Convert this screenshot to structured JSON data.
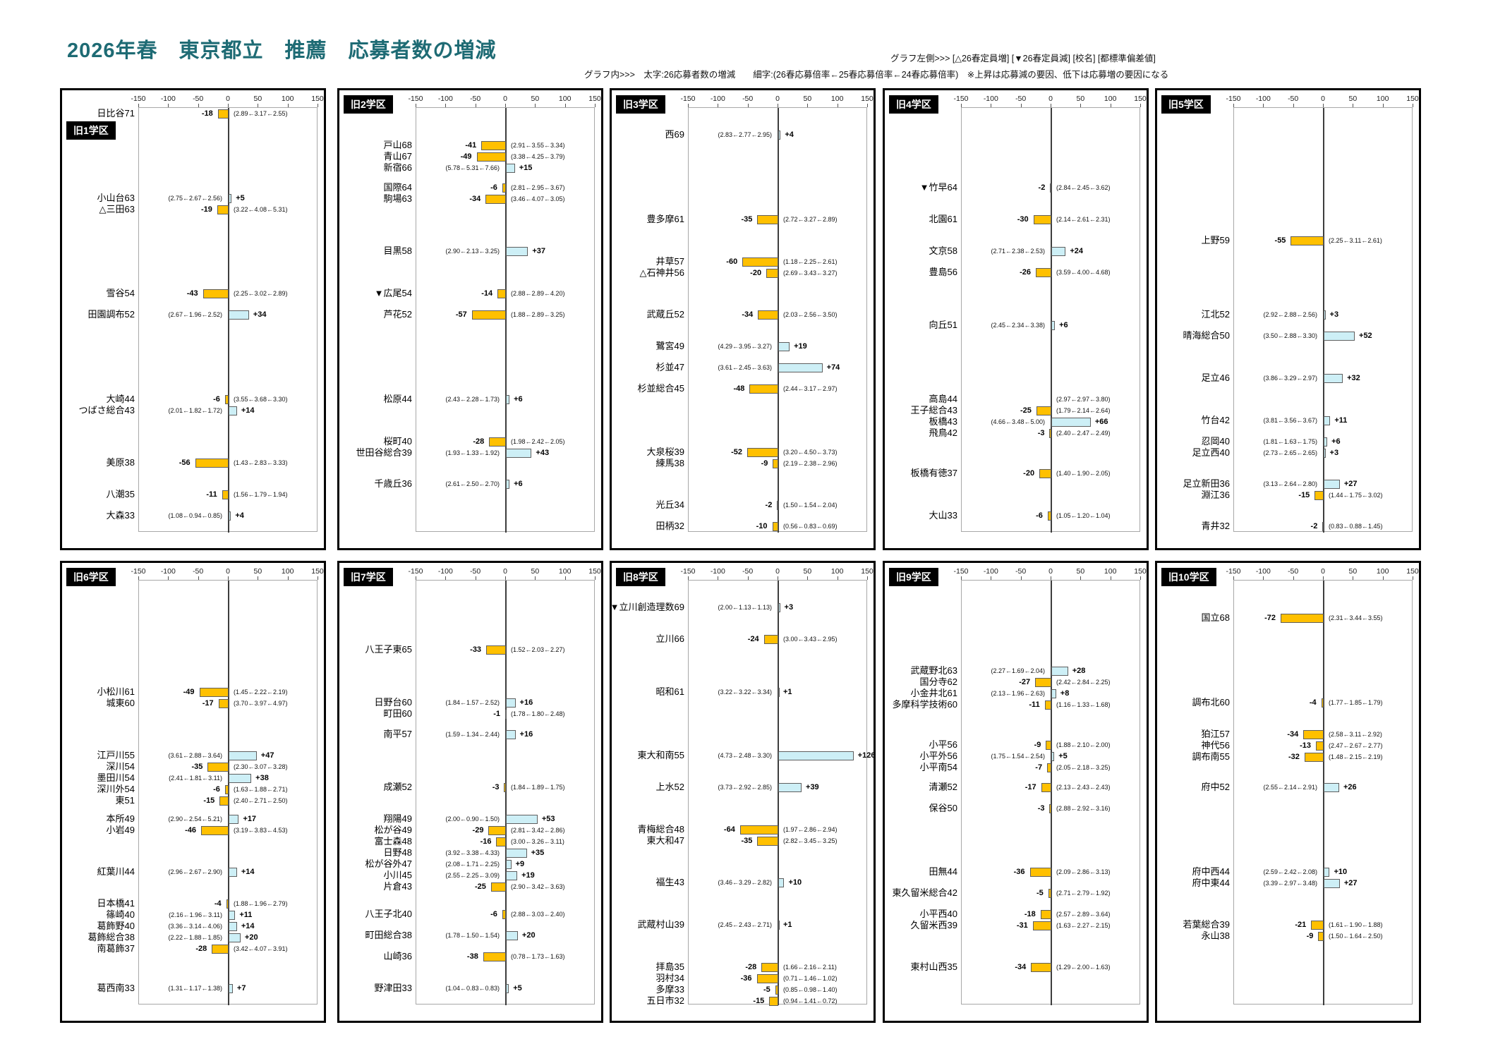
{
  "header": {
    "graph_left_legend": "グラフ左側>>> [△26春定員増] [▼26春定員減] [校名] [都標準偏差値]",
    "graph_inner_legend": "グラフ内>>>　太字:26応募者数の増減　　細字:(26春応募倍率←25春応募倍率←24春応募倍率)　※上昇は応募減の要因、低下は応募増の要因になる"
  },
  "colors": {
    "decrease_bar": "#FFC000",
    "increase_bar": "#CDEFF6",
    "title_text": "#1E6B74",
    "district_label_bg": "#000000",
    "district_label_text": "#FFFFFF"
  },
  "chart_data": {
    "type": "bar",
    "title": "2026年春　東京都立　推薦　応募者数の増減",
    "orientation": "horizontal",
    "x_axis": {
      "min": -150,
      "max": 150,
      "ticks": [
        -150,
        -100,
        -50,
        0,
        50,
        100,
        150
      ]
    },
    "value_meaning": "26応募者数の増減",
    "rates_meaning": "(26春応募倍率←25春応募倍率←24春応募倍率)",
    "panels": [
      {
        "district": "旧1学区",
        "schools": [
          {
            "label": "日比谷",
            "score": 71,
            "change": -18,
            "rates": "(2.89←3.17←2.55)"
          },
          {
            "label": "小山台",
            "score": 63,
            "change": 5,
            "rates": "(2.75←2.67←2.56)"
          },
          {
            "label": "△三田",
            "score": 63,
            "change": -19,
            "rates": "(3.22←4.08←5.31)"
          },
          {
            "label": "雪谷",
            "score": 54,
            "change": -43,
            "rates": "(2.25←3.02←2.89)"
          },
          {
            "label": "田園調布",
            "score": 52,
            "change": 34,
            "rates": "(2.67←1.96←2.52)"
          },
          {
            "label": "大崎",
            "score": 44,
            "change": -6,
            "rates": "(3.55←3.68←3.30)"
          },
          {
            "label": "つばさ総合",
            "score": 43,
            "change": 14,
            "rates": "(2.01←1.82←1.72)"
          },
          {
            "label": "美原",
            "score": 38,
            "change": -56,
            "rates": "(1.43←2.83←3.33)"
          },
          {
            "label": "八潮",
            "score": 35,
            "change": -11,
            "rates": "(1.56←1.79←1.94)"
          },
          {
            "label": "大森",
            "score": 33,
            "change": 4,
            "rates": "(1.08←0.94←0.85)"
          }
        ]
      },
      {
        "district": "旧2学区",
        "schools": [
          {
            "label": "戸山",
            "score": 68,
            "change": -41,
            "rates": "(2.91←3.55←3.34)"
          },
          {
            "label": "青山",
            "score": 67,
            "change": -49,
            "rates": "(3.38←4.25←3.79)"
          },
          {
            "label": "新宿",
            "score": 66,
            "change": 15,
            "rates": "(5.78←5.31←7.66)"
          },
          {
            "label": "国際",
            "score": 64,
            "change": -6,
            "rates": "(2.81←2.95←3.67)"
          },
          {
            "label": "駒場",
            "score": 63,
            "change": -34,
            "rates": "(3.46←4.07←3.05)"
          },
          {
            "label": "目黒",
            "score": 58,
            "change": 37,
            "rates": "(2.90←2.13←3.25)"
          },
          {
            "label": "▼広尾",
            "score": 54,
            "change": -14,
            "rates": "(2.88←2.89←4.20)"
          },
          {
            "label": "芦花",
            "score": 52,
            "change": -57,
            "rates": "(1.88←2.89←3.25)"
          },
          {
            "label": "松原",
            "score": 44,
            "change": 6,
            "rates": "(2.43←2.28←1.73)"
          },
          {
            "label": "桜町",
            "score": 40,
            "change": -28,
            "rates": "(1.98←2.42←2.05)"
          },
          {
            "label": "世田谷総合",
            "score": 39,
            "change": 43,
            "rates": "(1.93←1.33←1.92)"
          },
          {
            "label": "千歳丘",
            "score": 36,
            "change": 6,
            "rates": "(2.61←2.50←2.70)"
          }
        ]
      },
      {
        "district": "旧3学区",
        "schools": [
          {
            "label": "西",
            "score": 69,
            "change": 4,
            "rates": "(2.83←2.77←2.95)"
          },
          {
            "label": "豊多摩",
            "score": 61,
            "change": -35,
            "rates": "(2.72←3.27←2.89)"
          },
          {
            "label": "井草",
            "score": 57,
            "change": -60,
            "rates": "(1.18←2.25←2.61)"
          },
          {
            "label": "△石神井",
            "score": 56,
            "change": -20,
            "rates": "(2.69←3.43←3.27)"
          },
          {
            "label": "武蔵丘",
            "score": 52,
            "change": -34,
            "rates": "(2.03←2.56←3.50)"
          },
          {
            "label": "鷺宮",
            "score": 49,
            "change": 19,
            "rates": "(4.29←3.95←3.27)"
          },
          {
            "label": "杉並",
            "score": 47,
            "change": 74,
            "rates": "(3.61←2.45←3.63)"
          },
          {
            "label": "杉並総合",
            "score": 45,
            "change": -48,
            "rates": "(2.44←3.17←2.97)"
          },
          {
            "label": "大泉桜",
            "score": 39,
            "change": -52,
            "rates": "(3.20←4.50←3.73)"
          },
          {
            "label": "練馬",
            "score": 38,
            "change": -9,
            "rates": "(2.19←2.38←2.96)"
          },
          {
            "label": "光丘",
            "score": 34,
            "change": -2,
            "rates": "(1.50←1.54←2.04)"
          },
          {
            "label": "田柄",
            "score": 32,
            "change": -10,
            "rates": "(0.56←0.83←0.69)"
          }
        ]
      },
      {
        "district": "旧4学区",
        "schools": [
          {
            "label": "▼竹早",
            "score": 64,
            "change": -2,
            "rates": "(2.84←2.45←3.62)"
          },
          {
            "label": "北園",
            "score": 61,
            "change": -30,
            "rates": "(2.14←2.61←2.31)"
          },
          {
            "label": "文京",
            "score": 58,
            "change": 24,
            "rates": "(2.71←2.38←2.53)"
          },
          {
            "label": "豊島",
            "score": 56,
            "change": -26,
            "rates": "(3.59←4.00←4.68)"
          },
          {
            "label": "向丘",
            "score": 51,
            "change": 6,
            "rates": "(2.45←2.34←3.38)"
          },
          {
            "label": "高島",
            "score": 44,
            "change": null,
            "rates": "(2.97←2.97←3.80)"
          },
          {
            "label": "王子総合",
            "score": 43,
            "change": -25,
            "rates": "(1.79←2.14←2.64)"
          },
          {
            "label": "板橋",
            "score": 43,
            "change": 66,
            "rates": "(4.66←3.48←5.00)"
          },
          {
            "label": "飛鳥",
            "score": 42,
            "change": -3,
            "rates": "(2.40←2.47←2.49)"
          },
          {
            "label": "板橋有徳",
            "score": 37,
            "change": -20,
            "rates": "(1.40←1.90←2.05)"
          },
          {
            "label": "大山",
            "score": 33,
            "change": -6,
            "rates": "(1.05←1.20←1.04)"
          }
        ]
      },
      {
        "district": "旧5学区",
        "schools": [
          {
            "label": "上野",
            "score": 59,
            "change": -55,
            "rates": "(2.25←3.11←2.61)"
          },
          {
            "label": "江北",
            "score": 52,
            "change": 3,
            "rates": "(2.92←2.88←2.56)"
          },
          {
            "label": "晴海総合",
            "score": 50,
            "change": 52,
            "rates": "(3.50←2.88←3.30)"
          },
          {
            "label": "足立",
            "score": 46,
            "change": 32,
            "rates": "(3.86←3.29←2.97)"
          },
          {
            "label": "竹台",
            "score": 42,
            "change": 11,
            "rates": "(3.81←3.56←3.67)"
          },
          {
            "label": "忍岡",
            "score": 40,
            "change": 6,
            "rates": "(1.81←1.63←1.75)"
          },
          {
            "label": "足立西",
            "score": 40,
            "change": 3,
            "rates": "(2.73←2.65←2.65)"
          },
          {
            "label": "足立新田",
            "score": 36,
            "change": 27,
            "rates": "(3.13←2.64←2.80)"
          },
          {
            "label": "淵江",
            "score": 36,
            "change": -15,
            "rates": "(1.44←1.75←3.02)"
          },
          {
            "label": "青井",
            "score": 32,
            "change": -2,
            "rates": "(0.83←0.88←1.45)"
          }
        ]
      },
      {
        "district": "旧6学区",
        "schools": [
          {
            "label": "小松川",
            "score": 61,
            "change": -49,
            "rates": "(1.45←2.22←2.19)"
          },
          {
            "label": "城東",
            "score": 60,
            "change": -17,
            "rates": "(3.70←3.97←4.97)"
          },
          {
            "label": "江戸川",
            "score": 55,
            "change": 47,
            "rates": "(3.61←2.88←3.64)"
          },
          {
            "label": "深川",
            "score": 54,
            "change": -35,
            "rates": "(2.30←3.07←3.28)"
          },
          {
            "label": "墨田川",
            "score": 54,
            "change": 38,
            "rates": "(2.41←1.81←3.11)"
          },
          {
            "label": "深川外",
            "score": 54,
            "change": -6,
            "rates": "(1.63←1.88←2.71)"
          },
          {
            "label": "東",
            "score": 51,
            "change": -15,
            "rates": "(2.40←2.71←2.50)"
          },
          {
            "label": "本所",
            "score": 49,
            "change": 17,
            "rates": "(2.90←2.54←5.21)"
          },
          {
            "label": "小岩",
            "score": 49,
            "change": -46,
            "rates": "(3.19←3.83←4.53)"
          },
          {
            "label": "紅葉川",
            "score": 44,
            "change": 14,
            "rates": "(2.96←2.67←2.90)"
          },
          {
            "label": "日本橋",
            "score": 41,
            "change": -4,
            "rates": "(1.88←1.96←2.79)"
          },
          {
            "label": "篠崎",
            "score": 40,
            "change": 11,
            "rates": "(2.16←1.96←3.11)"
          },
          {
            "label": "葛飾野",
            "score": 40,
            "change": 14,
            "rates": "(3.36←3.14←4.06)"
          },
          {
            "label": "葛飾総合",
            "score": 38,
            "change": 20,
            "rates": "(2.22←1.88←1.85)"
          },
          {
            "label": "南葛飾",
            "score": 37,
            "change": -28,
            "rates": "(3.42←4.07←3.91)"
          },
          {
            "label": "葛西南",
            "score": 33,
            "change": 7,
            "rates": "(1.31←1.17←1.38)"
          }
        ]
      },
      {
        "district": "旧7学区",
        "schools": [
          {
            "label": "八王子東",
            "score": 65,
            "change": -33,
            "rates": "(1.52←2.03←2.27)"
          },
          {
            "label": "日野台",
            "score": 60,
            "change": 16,
            "rates": "(1.84←1.57←2.52)"
          },
          {
            "label": "町田",
            "score": 60,
            "change": -1,
            "rates": "(1.78←1.80←2.48)"
          },
          {
            "label": "南平",
            "score": 57,
            "change": 16,
            "rates": "(1.59←1.34←2.44)"
          },
          {
            "label": "成瀬",
            "score": 52,
            "change": -3,
            "rates": "(1.84←1.89←1.75)"
          },
          {
            "label": "翔陽",
            "score": 49,
            "change": 53,
            "rates": "(2.00←0.90←1.50)"
          },
          {
            "label": "松が谷",
            "score": 49,
            "change": -29,
            "rates": "(2.81←3.42←2.86)"
          },
          {
            "label": "富士森",
            "score": 48,
            "change": -16,
            "rates": "(3.00←3.26←3.11)"
          },
          {
            "label": "日野",
            "score": 48,
            "change": 35,
            "rates": "(3.92←3.38←4.33)"
          },
          {
            "label": "松が谷外",
            "score": 47,
            "change": 9,
            "rates": "(2.08←1.71←2.25)"
          },
          {
            "label": "小川",
            "score": 45,
            "change": 19,
            "rates": "(2.55←2.25←3.09)"
          },
          {
            "label": "片倉",
            "score": 43,
            "change": -25,
            "rates": "(2.90←3.42←3.63)"
          },
          {
            "label": "八王子北",
            "score": 40,
            "change": -6,
            "rates": "(2.88←3.03←2.40)"
          },
          {
            "label": "町田総合",
            "score": 38,
            "change": 20,
            "rates": "(1.78←1.50←1.54)"
          },
          {
            "label": "山崎",
            "score": 36,
            "change": -38,
            "rates": "(0.78←1.73←1.63)"
          },
          {
            "label": "野津田",
            "score": 33,
            "change": 5,
            "rates": "(1.04←0.83←0.83)"
          }
        ]
      },
      {
        "district": "旧8学区",
        "schools": [
          {
            "label": "▼立川創造理数",
            "score": 69,
            "change": 3,
            "rates": "(2.00←1.13←1.13)"
          },
          {
            "label": "立川",
            "score": 66,
            "change": -24,
            "rates": "(3.00←3.43←2.95)"
          },
          {
            "label": "昭和",
            "score": 61,
            "change": 1,
            "rates": "(3.22←3.22←3.34)"
          },
          {
            "label": "東大和南",
            "score": 55,
            "change": 126,
            "rates": "(4.73←2.48←3.30)"
          },
          {
            "label": "上水",
            "score": 52,
            "change": 39,
            "rates": "(3.73←2.92←2.85)"
          },
          {
            "label": "青梅総合",
            "score": 48,
            "change": -64,
            "rates": "(1.97←2.86←2.94)"
          },
          {
            "label": "東大和",
            "score": 47,
            "change": -35,
            "rates": "(2.82←3.45←3.25)"
          },
          {
            "label": "福生",
            "score": 43,
            "change": 10,
            "rates": "(3.46←3.29←2.82)"
          },
          {
            "label": "武蔵村山",
            "score": 39,
            "change": 1,
            "rates": "(2.45←2.43←2.71)"
          },
          {
            "label": "拝島",
            "score": 35,
            "change": -28,
            "rates": "(1.66←2.16←2.11)"
          },
          {
            "label": "羽村",
            "score": 34,
            "change": -36,
            "rates": "(0.71←1.46←1.02)"
          },
          {
            "label": "多摩",
            "score": 33,
            "change": -5,
            "rates": "(0.85←0.98←1.40)"
          },
          {
            "label": "五日市",
            "score": 32,
            "change": -15,
            "rates": "(0.94←1.41←0.72)"
          }
        ]
      },
      {
        "district": "旧9学区",
        "schools": [
          {
            "label": "武蔵野北",
            "score": 63,
            "change": 28,
            "rates": "(2.27←1.69←2.04)"
          },
          {
            "label": "国分寺",
            "score": 62,
            "change": -27,
            "rates": "(2.42←2.84←2.25)"
          },
          {
            "label": "小金井北",
            "score": 61,
            "change": 8,
            "rates": "(2.13←1.96←2.63)"
          },
          {
            "label": "多摩科学技術",
            "score": 60,
            "change": -11,
            "rates": "(1.16←1.33←1.68)"
          },
          {
            "label": "小平",
            "score": 56,
            "change": -9,
            "rates": "(1.88←2.10←2.00)"
          },
          {
            "label": "小平外",
            "score": 56,
            "change": 5,
            "rates": "(1.75←1.54←2.54)"
          },
          {
            "label": "小平南",
            "score": 54,
            "change": -7,
            "rates": "(2.05←2.18←3.25)"
          },
          {
            "label": "清瀬",
            "score": 52,
            "change": -17,
            "rates": "(2.13←2.43←2.43)"
          },
          {
            "label": "保谷",
            "score": 50,
            "change": -3,
            "rates": "(2.88←2.92←3.16)"
          },
          {
            "label": "田無",
            "score": 44,
            "change": -36,
            "rates": "(2.09←2.86←3.13)"
          },
          {
            "label": "東久留米総合",
            "score": 42,
            "change": -5,
            "rates": "(2.71←2.79←1.92)"
          },
          {
            "label": "小平西",
            "score": 40,
            "change": -18,
            "rates": "(2.57←2.89←3.64)"
          },
          {
            "label": "久留米西",
            "score": 39,
            "change": -31,
            "rates": "(1.63←2.27←2.15)"
          },
          {
            "label": "東村山西",
            "score": 35,
            "change": -34,
            "rates": "(1.29←2.00←1.63)"
          }
        ]
      },
      {
        "district": "旧10学区",
        "schools": [
          {
            "label": "国立",
            "score": 68,
            "change": -72,
            "rates": "(2.31←3.44←3.55)"
          },
          {
            "label": "調布北",
            "score": 60,
            "change": -4,
            "rates": "(1.77←1.85←1.79)"
          },
          {
            "label": "狛江",
            "score": 57,
            "change": -34,
            "rates": "(2.58←3.11←2.92)"
          },
          {
            "label": "神代",
            "score": 56,
            "change": -13,
            "rates": "(2.47←2.67←2.77)"
          },
          {
            "label": "調布南",
            "score": 55,
            "change": -32,
            "rates": "(1.48←2.15←2.19)"
          },
          {
            "label": "府中",
            "score": 52,
            "change": 26,
            "rates": "(2.55←2.14←2.91)"
          },
          {
            "label": "府中西",
            "score": 44,
            "change": 10,
            "rates": "(2.59←2.42←2.08)"
          },
          {
            "label": "府中東",
            "score": 44,
            "change": 27,
            "rates": "(3.39←2.97←3.48)"
          },
          {
            "label": "若葉総合",
            "score": 39,
            "change": -21,
            "rates": "(1.61←1.90←1.88)"
          },
          {
            "label": "永山",
            "score": 38,
            "change": -9,
            "rates": "(1.50←1.64←2.50)"
          }
        ]
      }
    ]
  }
}
